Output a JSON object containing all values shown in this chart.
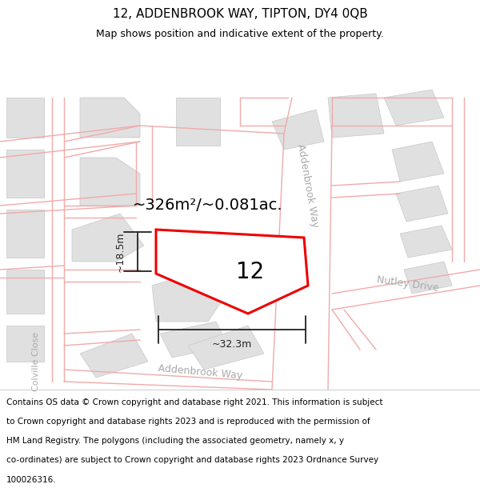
{
  "title_line1": "12, ADDENBROOK WAY, TIPTON, DY4 0QB",
  "title_line2": "Map shows position and indicative extent of the property.",
  "footer_lines": [
    "Contains OS data © Crown copyright and database right 2021. This information is subject",
    "to Crown copyright and database rights 2023 and is reproduced with the permission of",
    "HM Land Registry. The polygons (including the associated geometry, namely x, y",
    "co-ordinates) are subject to Crown copyright and database rights 2023 Ordnance Survey",
    "100026316."
  ],
  "area_label": "~326m²/~0.081ac.",
  "property_number": "12",
  "dim_width": "~32.3m",
  "dim_height": "~18.5m",
  "map_bg": "#f7f7f7",
  "road_line_color": "#f0aaaa",
  "block_color": "#e0e0e0",
  "block_outline": "#c8c8c8",
  "property_fill": "#ffffff",
  "property_edge": "#ee0000",
  "street_label_color": "#aaaaaa",
  "title_color": "#000000",
  "footer_color": "#000000",
  "dim_color": "#222222",
  "title_fontsize": 11,
  "subtitle_fontsize": 9,
  "area_fontsize": 14,
  "prop_num_fontsize": 20,
  "dim_fontsize": 9,
  "street_fontsize": 9,
  "footer_fontsize": 7.5
}
